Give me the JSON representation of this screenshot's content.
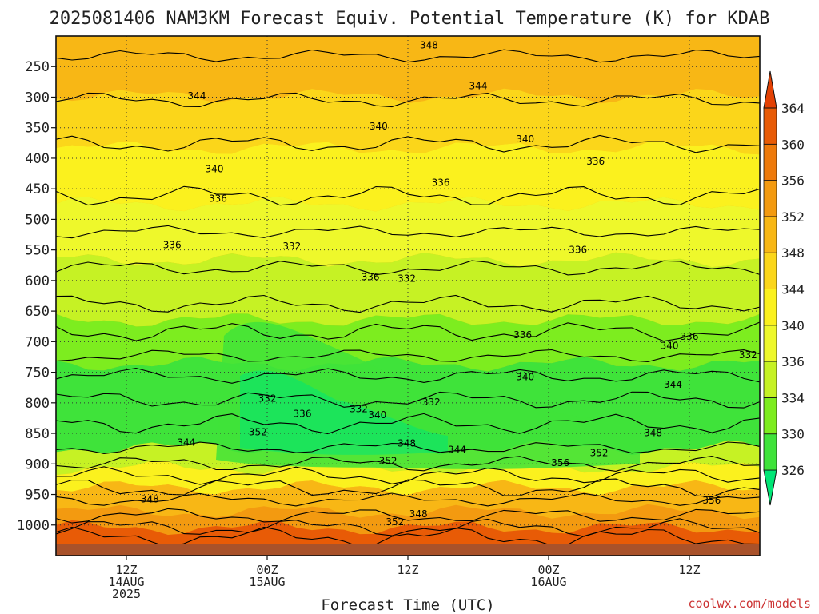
{
  "title": "2025081406 NAM3KM Forecast Equiv. Potential Temperature (K) for KDAB",
  "credit": "coolwx.com/models",
  "chart_data": {
    "type": "heatmap",
    "title": "2025081406 NAM3KM Forecast Equiv. Potential Temperature (K) for KDAB",
    "xlabel": "Forecast Time (UTC)",
    "ylabel": "",
    "x_range_hours": [
      0,
      60
    ],
    "y_axis": "pressure (hPa), inverted",
    "ylim": [
      1050,
      200
    ],
    "y_ticks": [
      250,
      300,
      350,
      400,
      450,
      500,
      550,
      600,
      650,
      700,
      750,
      800,
      850,
      900,
      950,
      1000
    ],
    "x_ticks": [
      {
        "hour": 6,
        "lines": [
          "12Z",
          "14AUG",
          "2025"
        ]
      },
      {
        "hour": 18,
        "lines": [
          "00Z",
          "15AUG"
        ]
      },
      {
        "hour": 30,
        "lines": [
          "12Z"
        ]
      },
      {
        "hour": 42,
        "lines": [
          "00Z",
          "16AUG"
        ]
      },
      {
        "hour": 54,
        "lines": [
          "12Z"
        ]
      }
    ],
    "grid": true,
    "colorbar": {
      "levels": [
        326,
        330,
        334,
        336,
        340,
        344,
        348,
        352,
        356,
        360,
        364
      ],
      "colors": [
        "#00e676",
        "#3fe33a",
        "#7ded1f",
        "#c6f224",
        "#eef82b",
        "#fbf11e",
        "#fbd61a",
        "#f8b715",
        "#f39a10",
        "#ee7a0b",
        "#e85b06",
        "#e34104"
      ],
      "placement": "right",
      "extend": "both"
    },
    "contour_labels": [
      {
        "value": "348",
        "hour": 31.8,
        "p": 215
      },
      {
        "value": "344",
        "hour": 12.0,
        "p": 298
      },
      {
        "value": "344",
        "hour": 36.0,
        "p": 282
      },
      {
        "value": "340",
        "hour": 27.5,
        "p": 348
      },
      {
        "value": "340",
        "hour": 40.0,
        "p": 369
      },
      {
        "value": "340",
        "hour": 13.5,
        "p": 418
      },
      {
        "value": "336",
        "hour": 46.0,
        "p": 405
      },
      {
        "value": "336",
        "hour": 32.8,
        "p": 440
      },
      {
        "value": "336",
        "hour": 13.8,
        "p": 466
      },
      {
        "value": "336",
        "hour": 9.9,
        "p": 542
      },
      {
        "value": "336",
        "hour": 44.5,
        "p": 550
      },
      {
        "value": "336",
        "hour": 26.8,
        "p": 594
      },
      {
        "value": "332",
        "hour": 20.1,
        "p": 544
      },
      {
        "value": "332",
        "hour": 29.9,
        "p": 597
      },
      {
        "value": "336",
        "hour": 39.8,
        "p": 689
      },
      {
        "value": "336",
        "hour": 54.0,
        "p": 692
      },
      {
        "value": "340",
        "hour": 52.3,
        "p": 707
      },
      {
        "value": "332",
        "hour": 59.0,
        "p": 722
      },
      {
        "value": "340",
        "hour": 40.0,
        "p": 758
      },
      {
        "value": "344",
        "hour": 52.6,
        "p": 770
      },
      {
        "value": "332",
        "hour": 18.0,
        "p": 793
      },
      {
        "value": "332",
        "hour": 32.0,
        "p": 799
      },
      {
        "value": "336",
        "hour": 21.0,
        "p": 818
      },
      {
        "value": "332",
        "hour": 25.8,
        "p": 810
      },
      {
        "value": "340",
        "hour": 27.4,
        "p": 820
      },
      {
        "value": "352",
        "hour": 17.2,
        "p": 848
      },
      {
        "value": "348",
        "hour": 50.9,
        "p": 849
      },
      {
        "value": "344",
        "hour": 11.1,
        "p": 865
      },
      {
        "value": "348",
        "hour": 29.9,
        "p": 866
      },
      {
        "value": "344",
        "hour": 34.2,
        "p": 877
      },
      {
        "value": "352",
        "hour": 28.3,
        "p": 895
      },
      {
        "value": "352",
        "hour": 46.3,
        "p": 882
      },
      {
        "value": "356",
        "hour": 43.0,
        "p": 898
      },
      {
        "value": "348",
        "hour": 8.0,
        "p": 958
      },
      {
        "value": "356",
        "hour": 55.9,
        "p": 960
      },
      {
        "value": "352",
        "hour": 28.9,
        "p": 995
      },
      {
        "value": "348",
        "hour": 30.9,
        "p": 982
      }
    ]
  }
}
